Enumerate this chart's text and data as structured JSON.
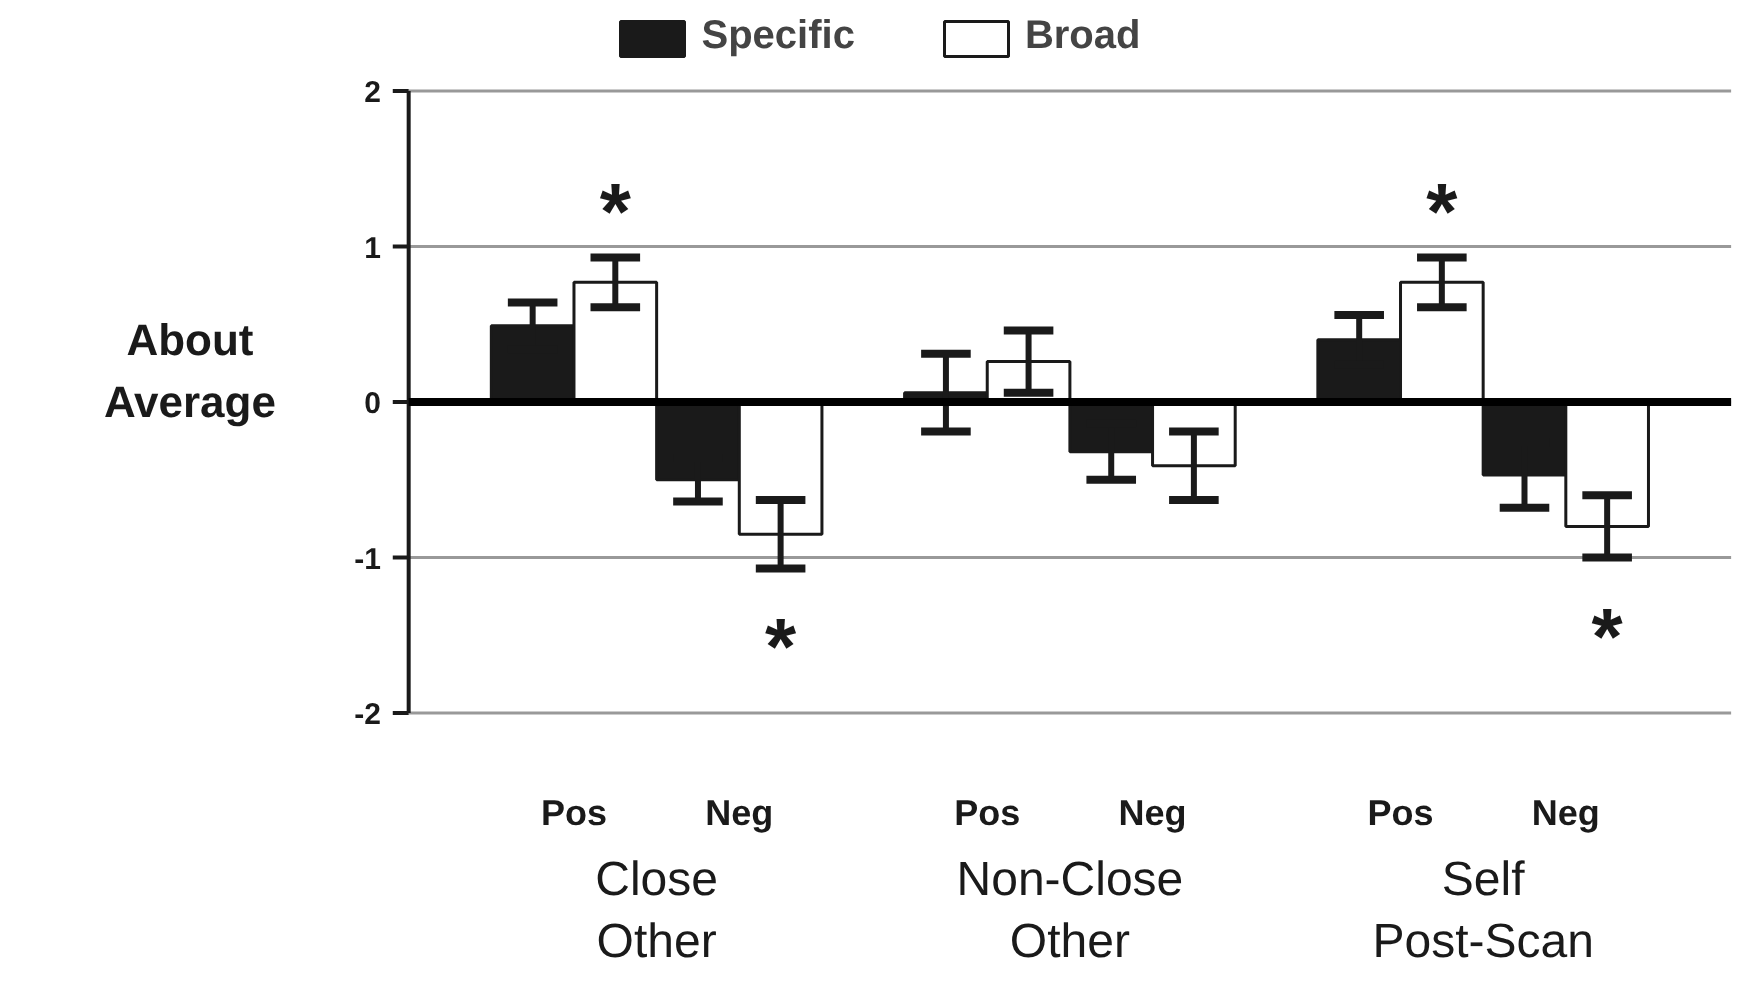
{
  "chart_data": {
    "type": "bar",
    "ylabel": "About\nAverage",
    "categories": [
      "Pos",
      "Neg",
      "Pos",
      "Neg",
      "Pos",
      "Neg"
    ],
    "series": [
      {
        "name": "Specific",
        "color": "#1a1a1a",
        "values": [
          0.49,
          -0.5,
          0.06,
          -0.32,
          0.4,
          -0.47
        ],
        "errors": [
          0.15,
          0.14,
          0.25,
          0.18,
          0.16,
          0.21
        ]
      },
      {
        "name": "Broad",
        "color": "#ffffff",
        "values": [
          0.77,
          -0.85,
          0.26,
          -0.41,
          0.77,
          -0.8
        ],
        "errors": [
          0.16,
          0.22,
          0.2,
          0.22,
          0.16,
          0.2
        ]
      }
    ],
    "ylim": [
      -2,
      2
    ],
    "yticks": [
      -2,
      -1,
      0,
      1,
      2
    ],
    "grid": "y",
    "legend": "top",
    "annotations": [
      "Close\nOther",
      "Non-Close\nOther",
      "Self\nPost-Scan",
      "*",
      "*",
      "*",
      "*"
    ]
  }
}
